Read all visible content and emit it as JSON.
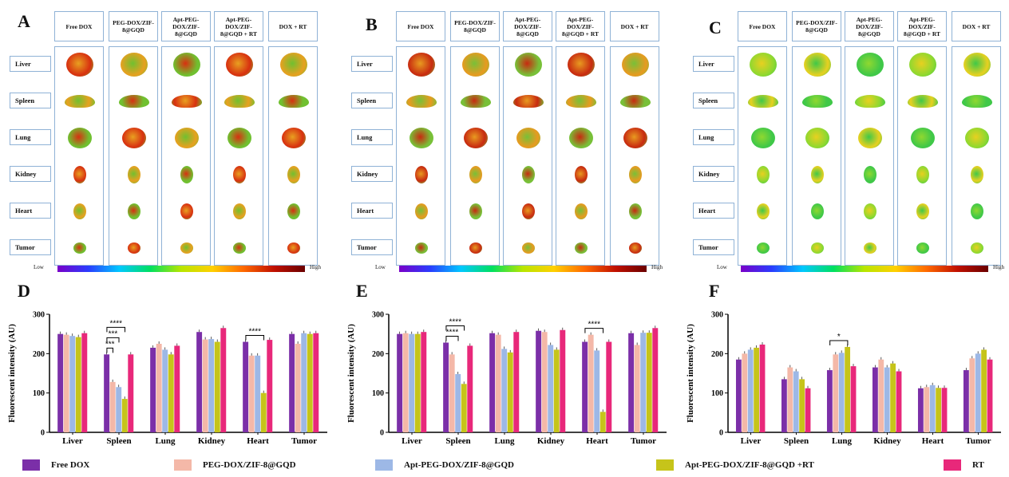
{
  "panels": [
    "A",
    "B",
    "C",
    "D",
    "E",
    "F"
  ],
  "image_panels": {
    "column_headers": {
      "A": [
        "Free DOX",
        "PEG-DOX/ZIF-8@GQD",
        "Apt-PEG-DOX/ZIF-8@GQD",
        "Apt-PEG-DOX/ZIF-8@GQD + RT",
        "DOX + RT"
      ],
      "B": [
        "Free DOX",
        "PEG-DOX/ZIF-8@GQD",
        "Apt-PEG-DOX/ZIF-8@GQD",
        "Apt-PEG-DOX/ZIF-8@GQD + RT",
        "DOX + RT"
      ],
      "C": [
        "Free DOX",
        "PEG-DOX/ZIF-8@GQD",
        "Apt-PEG-DOX/ZIF-8@GQD",
        "Apt-PEG-DOX/ZIF-8@GQD + RT",
        "DOX + RT"
      ]
    },
    "row_labels": [
      "Liver",
      "Spleen",
      "Lung",
      "Kidney",
      "Heart",
      "Tumor"
    ],
    "colorbar": {
      "low": "Low",
      "high": "High"
    }
  },
  "colors": {
    "Free DOX": "#7b2fa8",
    "PEG-DOX/ZIF-8@GQD": "#f4b8a8",
    "Apt-PEG-DOX/ZIF-8@GQD": "#9db8e6",
    "Apt-PEG-DOX/ZIF-8@GQD +RT": "#c6c41a",
    "RT": "#e8287a"
  },
  "chart_data": [
    {
      "panel": "D",
      "type": "bar",
      "ylabel": "Fluorescent intensity (AU)",
      "ylim": [
        0,
        300
      ],
      "yticks": [
        0,
        100,
        200,
        300
      ],
      "categories": [
        "Liver",
        "Spleen",
        "Lung",
        "Kidney",
        "Heart",
        "Tumor"
      ],
      "series": [
        {
          "name": "Free DOX",
          "values": [
            250,
            198,
            215,
            255,
            230,
            250
          ]
        },
        {
          "name": "PEG-DOX/ZIF-8@GQD",
          "values": [
            248,
            128,
            225,
            236,
            195,
            225
          ]
        },
        {
          "name": "Apt-PEG-DOX/ZIF-8@GQD",
          "values": [
            245,
            115,
            210,
            237,
            195,
            252
          ]
        },
        {
          "name": "Apt-PEG-DOX/ZIF-8@GQD +RT",
          "values": [
            242,
            85,
            198,
            230,
            100,
            250
          ]
        },
        {
          "name": "RT",
          "values": [
            252,
            198,
            220,
            265,
            235,
            252
          ]
        }
      ],
      "annotations": [
        {
          "label": "****",
          "category": "Spleen",
          "from": 0,
          "to": 3
        },
        {
          "label": "***",
          "category": "Spleen",
          "from": 0,
          "to": 2
        },
        {
          "label": "***",
          "category": "Spleen",
          "from": 0,
          "to": 1
        },
        {
          "label": "****",
          "category": "Heart",
          "from": 0,
          "to": 3
        }
      ]
    },
    {
      "panel": "E",
      "type": "bar",
      "ylabel": "Fluorescent intensity (AU)",
      "ylim": [
        0,
        300
      ],
      "yticks": [
        0,
        100,
        200,
        300
      ],
      "categories": [
        "Liver",
        "Spleen",
        "Lung",
        "Kidney",
        "Heart",
        "Tumor"
      ],
      "series": [
        {
          "name": "Free DOX",
          "values": [
            250,
            228,
            252,
            258,
            230,
            252
          ]
        },
        {
          "name": "PEG-DOX/ZIF-8@GQD",
          "values": [
            252,
            198,
            248,
            255,
            248,
            222
          ]
        },
        {
          "name": "Apt-PEG-DOX/ZIF-8@GQD",
          "values": [
            250,
            148,
            212,
            222,
            208,
            253
          ]
        },
        {
          "name": "Apt-PEG-DOX/ZIF-8@GQD +RT",
          "values": [
            250,
            123,
            203,
            210,
            52,
            253
          ]
        },
        {
          "name": "RT",
          "values": [
            255,
            220,
            255,
            260,
            230,
            265
          ]
        }
      ],
      "annotations": [
        {
          "label": "****",
          "category": "Spleen",
          "from": 0,
          "to": 3
        },
        {
          "label": "****",
          "category": "Spleen",
          "from": 0,
          "to": 2
        },
        {
          "label": "****",
          "category": "Heart",
          "from": 0,
          "to": 3
        }
      ]
    },
    {
      "panel": "F",
      "type": "bar",
      "ylabel": "Fluorescent intensity (AU)",
      "ylim": [
        0,
        300
      ],
      "yticks": [
        0,
        100,
        200,
        300
      ],
      "categories": [
        "Liver",
        "Spleen",
        "Lung",
        "Kidney",
        "Heart",
        "Tumor"
      ],
      "series": [
        {
          "name": "Free DOX",
          "values": [
            185,
            135,
            158,
            165,
            112,
            158
          ]
        },
        {
          "name": "PEG-DOX/ZIF-8@GQD",
          "values": [
            200,
            165,
            198,
            185,
            115,
            188
          ]
        },
        {
          "name": "Apt-PEG-DOX/ZIF-8@GQD",
          "values": [
            210,
            155,
            202,
            165,
            120,
            200
          ]
        },
        {
          "name": "Apt-PEG-DOX/ZIF-8@GQD +RT",
          "values": [
            215,
            135,
            217,
            175,
            113,
            210
          ]
        },
        {
          "name": "RT",
          "values": [
            223,
            112,
            168,
            155,
            113,
            185
          ]
        }
      ],
      "annotations": [
        {
          "label": "*",
          "category": "Lung",
          "from": 0,
          "to": 3
        }
      ]
    }
  ],
  "legend": [
    {
      "label": "Free DOX",
      "color": "#7b2fa8"
    },
    {
      "label": "PEG-DOX/ZIF-8@GQD",
      "color": "#f4b8a8"
    },
    {
      "label": "Apt-PEG-DOX/ZIF-8@GQD",
      "color": "#9db8e6"
    },
    {
      "label": "Apt-PEG-DOX/ZIF-8@GQD +RT",
      "color": "#c6c41a"
    },
    {
      "label": "RT",
      "color": "#e8287a"
    }
  ]
}
